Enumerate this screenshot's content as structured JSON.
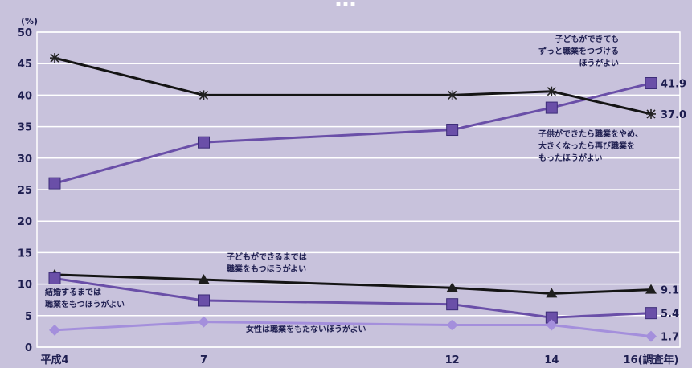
{
  "chart_data": {
    "type": "line",
    "title": "…",
    "y_unit": "(%)",
    "x": [
      4,
      7,
      12,
      14,
      16
    ],
    "x_tick_labels": [
      "平成4",
      "7",
      "12",
      "14",
      "16(調査年)"
    ],
    "ylim": [
      0,
      50
    ],
    "y_ticks": [
      0,
      5,
      10,
      15,
      20,
      25,
      30,
      35,
      40,
      45,
      50
    ],
    "grid": true,
    "series": [
      {
        "name": "子どもができてもずっと職業をつづけるほうがよい",
        "label_lines": [
          "子どもができても",
          "ずっと職業をつづける",
          "ほうがよい"
        ],
        "marker": "square",
        "color": "#6a4fa8",
        "values": [
          26.0,
          32.5,
          34.5,
          38.0,
          41.9
        ],
        "end_label": "41.9"
      },
      {
        "name": "子供ができたら職業をやめ、大きくなったら再び職業をもったほうがよい",
        "label_lines": [
          "子供ができたら職業をやめ、",
          "大きくなったら再び職業を",
          "もったほうがよい"
        ],
        "marker": "asterisk",
        "color": "#141414",
        "values": [
          45.9,
          40.0,
          40.0,
          40.6,
          37.0
        ],
        "end_label": "37.0"
      },
      {
        "name": "子どもができるまでは職業をもつほうがよい",
        "label_lines": [
          "子どもができるまでは",
          "職業をもつほうがよい"
        ],
        "marker": "triangle",
        "color": "#141414",
        "values": [
          11.5,
          10.7,
          9.4,
          8.5,
          9.1
        ],
        "end_label": "9.1"
      },
      {
        "name": "結婚するまでは職業をもつほうがよい",
        "label_lines": [
          "結婚するまでは",
          "職業をもつほうがよい"
        ],
        "marker": "square",
        "color": "#6a4fa8",
        "values": [
          10.9,
          7.4,
          6.8,
          4.7,
          5.4
        ],
        "end_label": "5.4"
      },
      {
        "name": "女性は職業をもたないほうがよい",
        "label_lines": [
          "女性は職業をもたないほうがよい"
        ],
        "marker": "diamond",
        "color": "#a48fdc",
        "values": [
          2.7,
          4.0,
          3.5,
          3.5,
          1.7
        ],
        "end_label": "1.7"
      }
    ]
  }
}
